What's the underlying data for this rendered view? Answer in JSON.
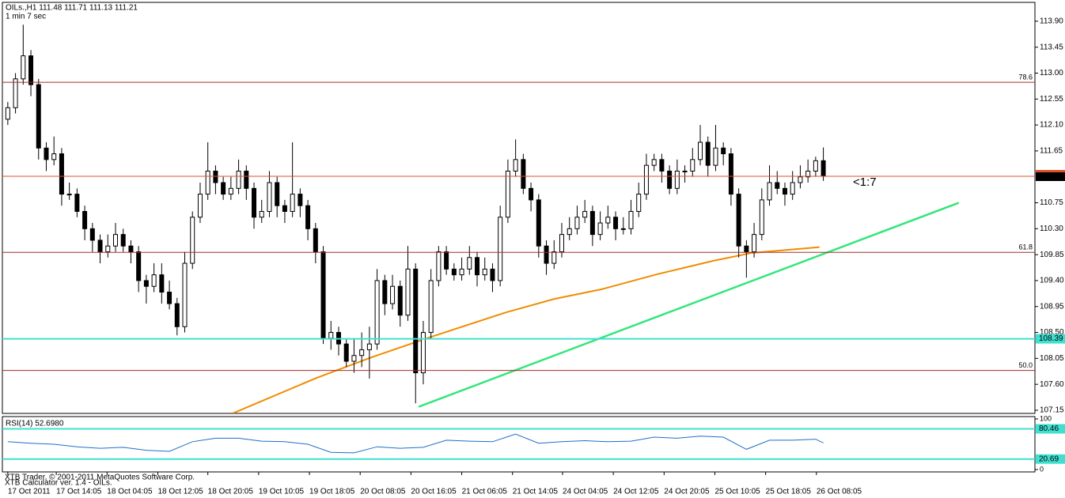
{
  "chart_data": {
    "type": "candlestick",
    "title": "OILs.,H1  111.48 111.71 111.13 111.21",
    "subtitle": "1 min 7 sec",
    "xlim": [
      -0.5,
      133.5
    ],
    "ylim": [
      107.095,
      114.2
    ],
    "yticks": [
      {
        "value": 113.9,
        "label": "113.90"
      },
      {
        "value": 113.45,
        "label": "113.45"
      },
      {
        "value": 113.0,
        "label": "113.00"
      },
      {
        "value": 112.55,
        "label": "112.55"
      },
      {
        "value": 112.1,
        "label": "112.10"
      },
      {
        "value": 111.65,
        "label": "111.65"
      },
      {
        "value": 110.75,
        "label": "110.75"
      },
      {
        "value": 110.3,
        "label": "110.30"
      },
      {
        "value": 109.85,
        "label": "109.85"
      },
      {
        "value": 109.4,
        "label": "109.40"
      },
      {
        "value": 108.95,
        "label": "108.95"
      },
      {
        "value": 108.5,
        "label": "108.50"
      },
      {
        "value": 108.05,
        "label": "108.05"
      },
      {
        "value": 107.6,
        "label": "107.60"
      },
      {
        "value": 107.15,
        "label": "107.15"
      }
    ],
    "xticks": [
      {
        "value": 0,
        "label": "17 Oct 2011"
      },
      {
        "value": 6.3,
        "label": "17 Oct 14:05"
      },
      {
        "value": 12.9,
        "label": "18 Oct 04:05"
      },
      {
        "value": 19.5,
        "label": "18 Oct 12:05"
      },
      {
        "value": 26.0,
        "label": "18 Oct 20:05"
      },
      {
        "value": 32.6,
        "label": "19 Oct 10:05"
      },
      {
        "value": 39.2,
        "label": "19 Oct 18:05"
      },
      {
        "value": 45.8,
        "label": "20 Oct 08:05"
      },
      {
        "value": 52.4,
        "label": "20 Oct 16:05"
      },
      {
        "value": 59.0,
        "label": "21 Oct 06:05"
      },
      {
        "value": 65.6,
        "label": "21 Oct 14:05"
      },
      {
        "value": 72.1,
        "label": "24 Oct 04:05"
      },
      {
        "value": 78.7,
        "label": "24 Oct 12:05"
      },
      {
        "value": 85.3,
        "label": "24 Oct 20:05"
      },
      {
        "value": 91.9,
        "label": "25 Oct 10:05"
      },
      {
        "value": 98.5,
        "label": "25 Oct 18:05"
      },
      {
        "value": 105.1,
        "label": "26 Oct 08:05"
      }
    ],
    "candles": [
      [
        112.2,
        112.5,
        112.1,
        112.4
      ],
      [
        112.4,
        113.0,
        112.3,
        112.9
      ],
      [
        112.9,
        113.84,
        112.8,
        113.3
      ],
      [
        113.3,
        113.4,
        112.6,
        112.8
      ],
      [
        112.8,
        112.9,
        111.5,
        111.7
      ],
      [
        111.7,
        111.8,
        111.3,
        111.5
      ],
      [
        111.5,
        111.9,
        111.4,
        111.6
      ],
      [
        111.6,
        111.7,
        110.7,
        110.9
      ],
      [
        110.9,
        111.1,
        110.8,
        110.9
      ],
      [
        110.9,
        111.0,
        110.5,
        110.6
      ],
      [
        110.6,
        110.7,
        110.1,
        110.3
      ],
      [
        110.3,
        110.4,
        109.9,
        110.1
      ],
      [
        110.1,
        110.2,
        109.7,
        109.9
      ],
      [
        109.9,
        110.2,
        109.8,
        110.0
      ],
      [
        110.0,
        110.4,
        109.9,
        110.2
      ],
      [
        110.2,
        110.3,
        109.9,
        110.0
      ],
      [
        110.0,
        110.1,
        109.7,
        109.9
      ],
      [
        109.9,
        110.0,
        109.2,
        109.4
      ],
      [
        109.4,
        109.5,
        109.0,
        109.3
      ],
      [
        109.3,
        109.7,
        109.2,
        109.5
      ],
      [
        109.5,
        109.7,
        109.0,
        109.2
      ],
      [
        109.2,
        109.4,
        108.9,
        109.0
      ],
      [
        109.0,
        109.1,
        108.45,
        108.6
      ],
      [
        108.6,
        109.9,
        108.5,
        109.7
      ],
      [
        109.7,
        110.6,
        109.6,
        110.5
      ],
      [
        110.5,
        111.1,
        110.4,
        110.9
      ],
      [
        110.9,
        111.8,
        110.8,
        111.3
      ],
      [
        111.3,
        111.4,
        110.9,
        111.1
      ],
      [
        111.1,
        111.2,
        110.8,
        110.9
      ],
      [
        110.9,
        111.2,
        110.8,
        111.0
      ],
      [
        111.0,
        111.5,
        110.9,
        111.3
      ],
      [
        111.3,
        111.4,
        110.8,
        111.0
      ],
      [
        111.0,
        111.1,
        110.3,
        110.5
      ],
      [
        110.5,
        110.8,
        110.4,
        110.6
      ],
      [
        110.6,
        111.3,
        110.5,
        111.1
      ],
      [
        111.1,
        111.2,
        110.5,
        110.7
      ],
      [
        110.7,
        110.8,
        110.4,
        110.6
      ],
      [
        110.6,
        111.8,
        110.5,
        110.9
      ],
      [
        110.9,
        111.0,
        110.5,
        110.7
      ],
      [
        110.7,
        110.8,
        110.1,
        110.3
      ],
      [
        110.3,
        110.4,
        109.7,
        109.9
      ],
      [
        109.9,
        110.0,
        108.3,
        108.4
      ],
      [
        108.4,
        108.7,
        108.2,
        108.5
      ],
      [
        108.5,
        108.6,
        108.1,
        108.3
      ],
      [
        108.3,
        108.4,
        107.9,
        108.0
      ],
      [
        108.0,
        108.4,
        107.8,
        108.1
      ],
      [
        108.1,
        108.5,
        107.9,
        108.2
      ],
      [
        108.2,
        108.6,
        107.7,
        108.3
      ],
      [
        108.3,
        109.6,
        108.2,
        109.4
      ],
      [
        109.4,
        109.5,
        108.8,
        109.0
      ],
      [
        109.0,
        109.5,
        108.9,
        109.3
      ],
      [
        109.3,
        109.4,
        108.6,
        108.8
      ],
      [
        108.8,
        110.0,
        108.7,
        109.6
      ],
      [
        109.6,
        109.7,
        107.27,
        107.8
      ],
      [
        107.8,
        108.7,
        107.6,
        108.5
      ],
      [
        108.5,
        109.6,
        108.4,
        109.4
      ],
      [
        109.4,
        110.0,
        109.3,
        109.9
      ],
      [
        109.9,
        110.0,
        109.5,
        109.6
      ],
      [
        109.6,
        109.7,
        109.4,
        109.5
      ],
      [
        109.5,
        109.8,
        109.4,
        109.6
      ],
      [
        109.6,
        110.0,
        109.5,
        109.8
      ],
      [
        109.8,
        109.9,
        109.3,
        109.5
      ],
      [
        109.5,
        109.8,
        109.4,
        109.6
      ],
      [
        109.6,
        109.7,
        109.2,
        109.4
      ],
      [
        109.4,
        110.7,
        109.3,
        110.5
      ],
      [
        110.5,
        111.5,
        110.4,
        111.3
      ],
      [
        111.3,
        111.85,
        111.2,
        111.5
      ],
      [
        111.5,
        111.6,
        110.9,
        111.0
      ],
      [
        111.0,
        111.1,
        110.6,
        110.8
      ],
      [
        110.8,
        110.9,
        109.8,
        110.0
      ],
      [
        110.0,
        110.1,
        109.5,
        109.7
      ],
      [
        109.7,
        110.1,
        109.6,
        109.9
      ],
      [
        109.9,
        110.4,
        109.8,
        110.2
      ],
      [
        110.2,
        110.5,
        110.1,
        110.3
      ],
      [
        110.3,
        110.7,
        110.2,
        110.5
      ],
      [
        110.5,
        110.8,
        110.4,
        110.6
      ],
      [
        110.6,
        110.7,
        110.0,
        110.2
      ],
      [
        110.2,
        110.6,
        110.1,
        110.4
      ],
      [
        110.4,
        110.7,
        110.3,
        110.5
      ],
      [
        110.5,
        110.6,
        110.1,
        110.3
      ],
      [
        110.3,
        110.5,
        110.2,
        110.3
      ],
      [
        110.3,
        110.8,
        110.2,
        110.6
      ],
      [
        110.6,
        111.1,
        110.5,
        110.9
      ],
      [
        110.9,
        111.6,
        110.8,
        111.4
      ],
      [
        111.4,
        111.6,
        111.3,
        111.5
      ],
      [
        111.5,
        111.6,
        111.1,
        111.3
      ],
      [
        111.3,
        111.4,
        110.9,
        111.0
      ],
      [
        111.0,
        111.5,
        110.9,
        111.3
      ],
      [
        111.3,
        111.4,
        111.1,
        111.3
      ],
      [
        111.3,
        111.7,
        111.2,
        111.5
      ],
      [
        111.5,
        112.1,
        111.4,
        111.8
      ],
      [
        111.8,
        111.9,
        111.2,
        111.4
      ],
      [
        111.4,
        112.1,
        111.3,
        111.7
      ],
      [
        111.7,
        111.8,
        111.4,
        111.6
      ],
      [
        111.6,
        111.7,
        110.7,
        110.9
      ],
      [
        110.9,
        111.0,
        109.8,
        110.0
      ],
      [
        110.0,
        110.1,
        109.45,
        109.9
      ],
      [
        109.9,
        110.4,
        109.8,
        110.2
      ],
      [
        110.2,
        111.0,
        110.1,
        110.8
      ],
      [
        110.8,
        111.4,
        110.7,
        111.1
      ],
      [
        111.1,
        111.3,
        110.9,
        111.0
      ],
      [
        111.0,
        111.1,
        110.7,
        110.9
      ],
      [
        110.9,
        111.3,
        110.8,
        111.1
      ],
      [
        111.1,
        111.4,
        111.0,
        111.2
      ],
      [
        111.2,
        111.5,
        111.1,
        111.3
      ],
      [
        111.3,
        111.55,
        111.2,
        111.48
      ],
      [
        111.48,
        111.71,
        111.13,
        111.21
      ]
    ],
    "ma": {
      "color": "#f08c00",
      "x": [
        29.3,
        40.1,
        47.3,
        54.5,
        64.8,
        71.0,
        77.2,
        84.4,
        91.6,
        96.7,
        105.5
      ],
      "values": [
        107.1,
        107.71,
        108.07,
        108.4,
        108.85,
        109.08,
        109.25,
        109.51,
        109.74,
        109.88,
        109.98
      ]
    },
    "trendline": {
      "color": "#33e67a",
      "x": [
        53.4,
        123.6
      ],
      "values": [
        107.21,
        110.75
      ]
    },
    "levels": [
      {
        "value": 112.84,
        "label": "78.6",
        "color": "#a0302a"
      },
      {
        "value": 109.89,
        "label": "61.8",
        "color": "#a0302a"
      },
      {
        "value": 107.84,
        "label": "50.0",
        "color": "#a0302a"
      }
    ],
    "support": {
      "value": 108.39,
      "color": "#40e0d0"
    },
    "price_line": {
      "value": 111.21,
      "color": "#e0502a"
    },
    "annotation": {
      "text": "<1:7",
      "color": "#4a90d9"
    },
    "rsi": {
      "title": "RSI(14) 52.6980",
      "color": "#1e6fc8",
      "level_color": "#40e0d0",
      "ylim": [
        0,
        100
      ],
      "yticks": [
        100,
        0
      ],
      "levels": [
        80.46,
        20.69
      ],
      "x": [
        0,
        3,
        6,
        9,
        12,
        15,
        18,
        21,
        24,
        27,
        30,
        33,
        36,
        39,
        42,
        45,
        48,
        51,
        54,
        57,
        60,
        63,
        66,
        69,
        72,
        75,
        78,
        81,
        84,
        87,
        90,
        93,
        96,
        99,
        102,
        105,
        106
      ],
      "values": [
        55,
        52,
        50,
        45,
        42,
        44,
        38,
        36,
        55,
        62,
        62,
        56,
        55,
        50,
        34,
        33,
        45,
        42,
        44,
        58,
        56,
        55,
        70,
        52,
        55,
        57,
        55,
        56,
        64,
        62,
        66,
        64,
        40,
        58,
        58,
        60,
        52.698
      ]
    },
    "footer": [
      "XTB Trader, © 2001-2011 MetaQuotes Software Corp.",
      "XTB Calculator ver. 1.4 - OILs."
    ]
  }
}
